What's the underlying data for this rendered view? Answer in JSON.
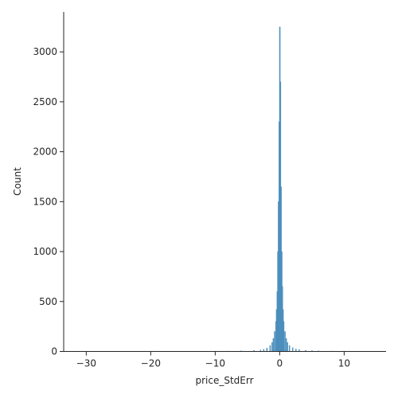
{
  "chart_data": {
    "type": "bar",
    "title": "",
    "xlabel": "price_StdErr",
    "ylabel": "Count",
    "xlim": [
      -33.5,
      16.5
    ],
    "ylim": [
      0,
      3400
    ],
    "xticks": [
      -30,
      -20,
      -10,
      0,
      10
    ],
    "xtick_labels": [
      "−30",
      "−20",
      "−10",
      "0",
      "10"
    ],
    "yticks": [
      0,
      500,
      1000,
      1500,
      2000,
      2500,
      3000
    ],
    "ytick_labels": [
      "0",
      "500",
      "1000",
      "1500",
      "2000",
      "2500",
      "3000"
    ],
    "grid": false,
    "bar_color": "#4c8fbd",
    "bin_width": 0.1,
    "bins": [
      {
        "x": -30.0,
        "count": 2
      },
      {
        "x": -25.0,
        "count": 1
      },
      {
        "x": -20.0,
        "count": 2
      },
      {
        "x": -15.0,
        "count": 2
      },
      {
        "x": -10.0,
        "count": 3
      },
      {
        "x": -8.0,
        "count": 4
      },
      {
        "x": -6.0,
        "count": 6
      },
      {
        "x": -4.0,
        "count": 10
      },
      {
        "x": -3.0,
        "count": 15
      },
      {
        "x": -2.5,
        "count": 22
      },
      {
        "x": -2.0,
        "count": 35
      },
      {
        "x": -1.5,
        "count": 60
      },
      {
        "x": -1.2,
        "count": 90
      },
      {
        "x": -1.0,
        "count": 130
      },
      {
        "x": -0.8,
        "count": 200
      },
      {
        "x": -0.6,
        "count": 300
      },
      {
        "x": -0.5,
        "count": 420
      },
      {
        "x": -0.4,
        "count": 600
      },
      {
        "x": -0.3,
        "count": 1000
      },
      {
        "x": -0.2,
        "count": 1500
      },
      {
        "x": -0.1,
        "count": 2300
      },
      {
        "x": 0.0,
        "count": 3250
      },
      {
        "x": 0.1,
        "count": 2700
      },
      {
        "x": 0.2,
        "count": 1650
      },
      {
        "x": 0.3,
        "count": 1000
      },
      {
        "x": 0.4,
        "count": 650
      },
      {
        "x": 0.5,
        "count": 420
      },
      {
        "x": 0.6,
        "count": 300
      },
      {
        "x": 0.8,
        "count": 200
      },
      {
        "x": 1.0,
        "count": 130
      },
      {
        "x": 1.2,
        "count": 90
      },
      {
        "x": 1.5,
        "count": 60
      },
      {
        "x": 2.0,
        "count": 38
      },
      {
        "x": 2.5,
        "count": 25
      },
      {
        "x": 3.0,
        "count": 18
      },
      {
        "x": 4.0,
        "count": 12
      },
      {
        "x": 5.0,
        "count": 8
      },
      {
        "x": 6.0,
        "count": 6
      },
      {
        "x": 8.0,
        "count": 4
      },
      {
        "x": 10.0,
        "count": 3
      },
      {
        "x": 12.0,
        "count": 2
      },
      {
        "x": 14.0,
        "count": 1
      }
    ]
  }
}
